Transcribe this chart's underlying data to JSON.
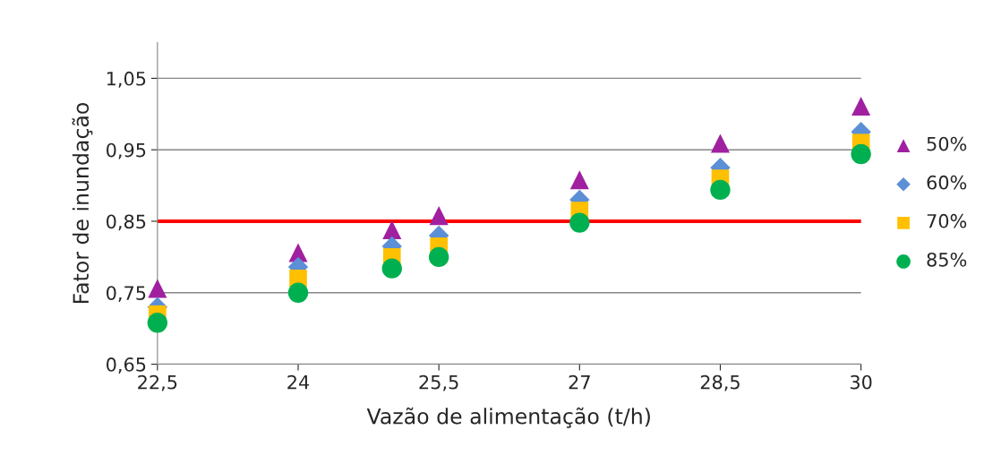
{
  "chart_data": {
    "type": "scatter",
    "xlabel": "Vazão de alimentação (t/h)",
    "ylabel": "Fator de inundação",
    "xlim": [
      22.5,
      30
    ],
    "ylim": [
      0.65,
      1.1
    ],
    "xticks": [
      {
        "value": 22.5,
        "label": "22,5"
      },
      24,
      {
        "value": 25.5,
        "label": "25,5"
      },
      27,
      {
        "value": 28.5,
        "label": "28,5"
      },
      30
    ],
    "yticks": [
      {
        "value": 0.65,
        "label": "0,65"
      },
      {
        "value": 0.75,
        "label": "0,75"
      },
      {
        "value": 0.85,
        "label": "0,85"
      },
      {
        "value": 0.95,
        "label": "0,95"
      },
      {
        "value": 1.05,
        "label": "1,05"
      }
    ],
    "grid": "y",
    "legend": "right",
    "x": [
      22.5,
      24,
      25,
      25.5,
      27,
      28.5,
      30
    ],
    "series": [
      {
        "name": "50%",
        "color": "#a020a0",
        "marker": "triangle",
        "values": [
          0.756,
          0.806,
          0.838,
          0.858,
          0.908,
          0.959,
          1.011
        ]
      },
      {
        "name": "60%",
        "color": "#5b8fd6",
        "marker": "diamond",
        "values": [
          0.73,
          0.786,
          0.815,
          0.83,
          0.88,
          0.925,
          0.975
        ]
      },
      {
        "name": "70%",
        "color": "#ffc000",
        "marker": "square",
        "values": [
          0.72,
          0.77,
          0.8,
          0.815,
          0.865,
          0.91,
          0.96
        ]
      },
      {
        "name": "85%",
        "color": "#00b050",
        "marker": "circle",
        "values": [
          0.708,
          0.75,
          0.784,
          0.8,
          0.848,
          0.894,
          0.944
        ]
      }
    ],
    "ref_lines": [
      {
        "axis": "y",
        "value": 0.85,
        "color": "#ff0000"
      }
    ]
  }
}
